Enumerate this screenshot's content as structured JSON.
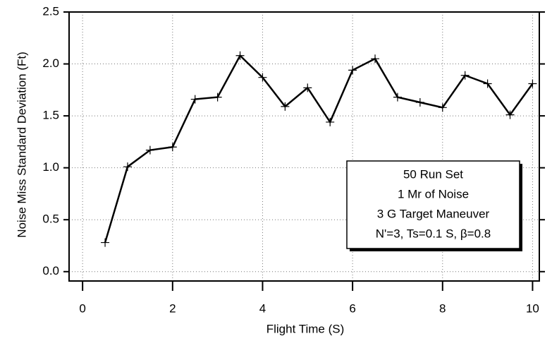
{
  "chart_data": {
    "type": "line",
    "x_label": "Flight Time (S)",
    "y_label": "Noise Miss Standard Deviation (Ft)",
    "x": [
      0.5,
      1,
      1.5,
      2,
      2.5,
      3,
      3.5,
      4,
      4.5,
      5,
      5.5,
      6,
      6.5,
      7,
      7.5,
      8,
      8.5,
      9,
      9.5,
      10
    ],
    "values": [
      0.28,
      1.01,
      1.17,
      1.2,
      1.66,
      1.68,
      2.08,
      1.87,
      1.59,
      1.77,
      1.44,
      1.94,
      2.05,
      1.68,
      1.63,
      1.58,
      1.89,
      1.81,
      1.51,
      1.81
    ],
    "color": "#000000",
    "xlim": [
      -0.3,
      10.15
    ],
    "ylim": [
      -0.09,
      2.5
    ],
    "xticks": [
      0,
      2,
      4,
      6,
      8,
      10
    ],
    "yticks": [
      {
        "value": 0,
        "label": "0.0"
      },
      0.5,
      {
        "value": 1,
        "label": "1.0"
      },
      1.5,
      {
        "value": 2,
        "label": "2.0"
      },
      2.5
    ],
    "grid": true,
    "annotation": [
      "50 Run Set",
      "1 Mr of Noise",
      "3 G Target Maneuver",
      "N'=3, Ts=0.1 S, β=0.8"
    ]
  }
}
